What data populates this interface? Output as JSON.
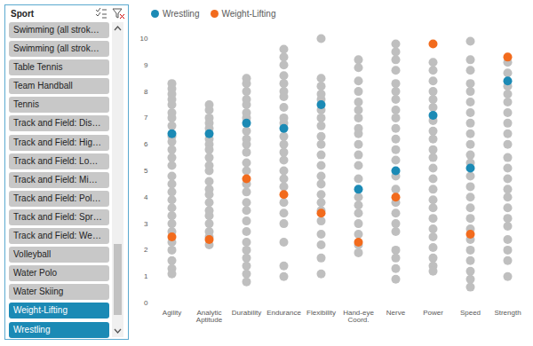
{
  "slicer": {
    "title": "Sport",
    "items": [
      {
        "label": "Swimming (all strok…",
        "selected": false
      },
      {
        "label": "Swimming (all strok…",
        "selected": false
      },
      {
        "label": "Table Tennis",
        "selected": false
      },
      {
        "label": "Team Handball",
        "selected": false
      },
      {
        "label": "Tennis",
        "selected": false
      },
      {
        "label": "Track and Field: Dis…",
        "selected": false
      },
      {
        "label": "Track and Field: Hig…",
        "selected": false
      },
      {
        "label": "Track and Field: Lo…",
        "selected": false
      },
      {
        "label": "Track and Field: Mi…",
        "selected": false
      },
      {
        "label": "Track and Field: Pol…",
        "selected": false
      },
      {
        "label": "Track and Field: Spr…",
        "selected": false
      },
      {
        "label": "Track and Field: We…",
        "selected": false
      },
      {
        "label": "Volleyball",
        "selected": false
      },
      {
        "label": "Water Polo",
        "selected": false
      },
      {
        "label": "Water Skiing",
        "selected": false
      },
      {
        "label": "Weight-Lifting",
        "selected": true
      },
      {
        "label": "Wrestling",
        "selected": true
      }
    ]
  },
  "chart_data": {
    "type": "scatter",
    "categories": [
      "Agility",
      "Analytic Aptitude",
      "Durability",
      "Endurance",
      "Flexibility",
      "Hand-eye Coord.",
      "Nerve",
      "Power",
      "Speed",
      "Strength"
    ],
    "ylim": [
      0,
      10
    ],
    "yticks": [
      0,
      1,
      2,
      3,
      4,
      5,
      6,
      7,
      8,
      9,
      10
    ],
    "grid": false,
    "legend": "top",
    "marker": "circle",
    "series": [
      {
        "name": null,
        "color": "#bfbfbf",
        "values": [
          [
            8.3,
            8.1,
            7.9,
            7.7,
            7.5,
            7.2,
            7.0,
            6.7,
            6.3,
            6.1,
            5.8,
            5.5,
            5.2,
            4.8,
            4.5,
            4.2,
            3.9,
            3.6,
            3.3,
            3.0,
            2.7,
            2.3,
            2.0,
            1.6,
            1.3,
            1.1
          ],
          [
            7.5,
            7.3,
            7.0,
            6.8,
            6.6,
            6.2,
            6.0,
            5.8,
            5.5,
            5.2,
            5.0,
            4.6,
            4.3,
            4.1,
            3.8,
            3.5,
            3.3,
            3.0,
            2.7,
            2.5,
            2.2
          ],
          [
            8.5,
            8.3,
            8.0,
            7.7,
            7.5,
            7.2,
            7.0,
            6.5,
            6.2,
            6.0,
            5.7,
            5.3,
            5.0,
            4.5,
            4.2,
            3.8,
            3.5,
            3.1,
            2.7,
            2.3,
            2.0,
            1.7,
            1.4,
            1.1,
            0.8
          ],
          [
            9.6,
            9.3,
            9.0,
            8.6,
            8.3,
            8.0,
            7.8,
            7.4,
            7.0,
            6.8,
            6.3,
            6.0,
            5.7,
            5.4,
            5.0,
            4.7,
            4.4,
            3.8,
            3.4,
            3.0,
            2.3,
            1.4,
            1.0
          ],
          [
            10.0,
            8.5,
            8.2,
            7.9,
            7.7,
            7.3,
            7.0,
            6.7,
            6.3,
            6.0,
            5.6,
            5.2,
            4.8,
            4.5,
            4.1,
            3.8,
            3.5,
            3.1,
            2.6,
            2.2,
            1.7,
            1.1
          ],
          [
            9.2,
            8.9,
            8.4,
            8.0,
            7.6,
            7.3,
            7.0,
            6.6,
            6.4,
            6.0,
            5.6,
            5.2,
            4.7,
            4.0,
            3.7,
            3.4,
            3.0,
            2.6,
            2.2,
            1.9
          ],
          [
            9.8,
            9.5,
            9.2,
            8.8,
            8.3,
            8.0,
            7.7,
            7.3,
            7.0,
            6.6,
            6.2,
            5.8,
            5.4,
            4.8,
            4.3,
            3.8,
            3.4,
            3.0,
            2.7,
            2.0,
            1.7,
            1.3,
            0.9
          ],
          [
            9.1,
            8.8,
            8.4,
            8.0,
            7.7,
            7.4,
            6.9,
            6.5,
            6.2,
            5.8,
            5.5,
            5.1,
            4.7,
            4.3,
            3.9,
            3.6,
            3.2,
            2.8,
            2.5,
            2.1,
            1.7,
            1.4,
            1.2
          ],
          [
            9.9,
            9.2,
            8.8,
            8.3,
            8.0,
            7.6,
            7.2,
            6.8,
            6.4,
            6.0,
            5.6,
            5.3,
            4.8,
            4.4,
            4.0,
            3.6,
            3.2,
            2.8,
            2.4,
            2.0,
            1.6,
            1.2,
            0.9,
            0.6
          ],
          [
            9.1,
            8.7,
            8.2,
            7.9,
            7.6,
            7.2,
            6.8,
            6.4,
            6.0,
            5.5,
            5.1,
            4.7,
            4.3,
            4.0,
            3.6,
            3.2,
            2.9,
            2.4,
            2.0,
            1.6,
            1.0
          ]
        ]
      },
      {
        "name": "Wrestling",
        "color": "#1b8ab5",
        "values": [
          6.4,
          6.4,
          6.8,
          6.6,
          7.5,
          4.3,
          5.0,
          7.1,
          5.1,
          8.4
        ]
      },
      {
        "name": "Weight-Lifting",
        "color": "#f26b1d",
        "values": [
          2.5,
          2.4,
          4.7,
          4.1,
          3.4,
          2.3,
          4.0,
          9.8,
          2.6,
          9.3
        ]
      }
    ]
  }
}
